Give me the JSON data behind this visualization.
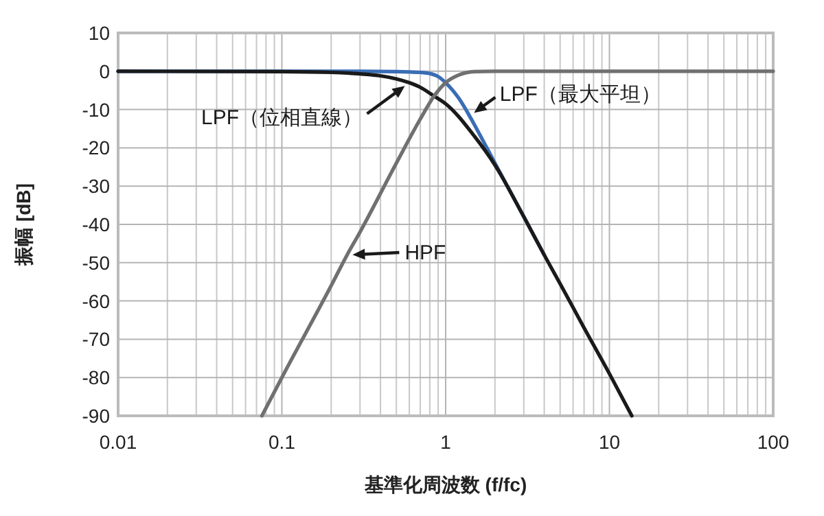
{
  "chart_data": {
    "type": "line",
    "xlabel": "基準化周波数 (f/fc)",
    "ylabel": "振幅 [dB]",
    "log": "x",
    "grid": true,
    "marker": "none",
    "line_style": "solid",
    "xlim": [
      0.01,
      100
    ],
    "xticks": [
      0.01,
      0.1,
      1,
      10,
      100
    ],
    "ylim": [
      -90,
      10
    ],
    "yticks": [
      -90,
      -80,
      -70,
      -60,
      -50,
      -40,
      -30,
      -20,
      -10,
      0,
      10
    ],
    "series": [
      {
        "color": "#3a6db5",
        "x": [
          0.01,
          0.3,
          0.5,
          0.6,
          0.7,
          0.8,
          0.9,
          1,
          1.2,
          1.4,
          1.5,
          2,
          3,
          4
        ],
        "values": [
          0,
          0,
          -0.1,
          -0.2,
          -0.3,
          -0.6,
          -1.4,
          -3,
          -7,
          -11.7,
          -14,
          -24,
          -38,
          -48
        ]
      },
      {
        "color": "#1a1a1a",
        "x": [
          0.01,
          0.1,
          0.2,
          0.3,
          0.4,
          0.5,
          0.6,
          0.7,
          0.85,
          1,
          1.5,
          2,
          3,
          4,
          5,
          7,
          10,
          13.7
        ],
        "values": [
          0,
          -0.1,
          -0.3,
          -0.7,
          -1.2,
          -2,
          -3,
          -4.2,
          -6.5,
          -8.5,
          -17,
          -24.5,
          -38,
          -48,
          -55.5,
          -67,
          -79,
          -90
        ]
      },
      {
        "color": "#707070",
        "x": [
          0.0755,
          0.1,
          0.2,
          0.25,
          0.3,
          0.5,
          0.7,
          0.85,
          1,
          1.2,
          1.5,
          2,
          100
        ],
        "values": [
          -90,
          -80,
          -56,
          -48,
          -42,
          -24,
          -12.5,
          -6.5,
          -3,
          -1,
          -0.1,
          0,
          0
        ]
      }
    ],
    "annotations": [
      {
        "text": "LPF（最大平坦）",
        "x": 1.4,
        "y": -11.7
      },
      {
        "text": "LPF（位相直線）",
        "x": 0.6,
        "y": -3
      },
      {
        "text": "HPF",
        "x": 0.25,
        "y": -48
      }
    ]
  }
}
